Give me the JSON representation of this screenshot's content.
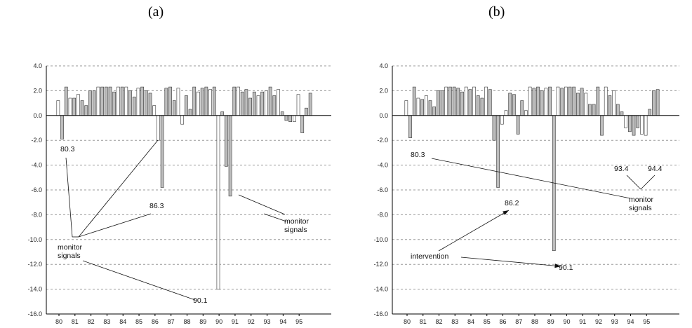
{
  "chart_data": [
    {
      "id": "a",
      "panel_label": "(a)",
      "type": "bar",
      "ylim": [
        -16,
        4
      ],
      "yticks": [
        "4.0",
        "2.0",
        "0.0",
        "-2.0",
        "-4.0",
        "-6.0",
        "-8.0",
        "-10.0",
        "-12.0",
        "-14.0",
        "-16.0"
      ],
      "xticks": [
        "80",
        "81",
        "82",
        "83",
        "84",
        "85",
        "86",
        "87",
        "88",
        "89",
        "90",
        "91",
        "92",
        "93",
        "94",
        "95"
      ],
      "grid": true,
      "bars": [
        1.2,
        -1.9,
        2.3,
        1.4,
        1.4,
        1.7,
        1.2,
        0.8,
        2.0,
        2.0,
        2.3,
        2.3,
        2.3,
        2.3,
        1.9,
        2.3,
        2.3,
        2.3,
        2.0,
        1.5,
        2.2,
        2.3,
        2.0,
        1.8,
        0.8,
        -2.0,
        -5.8,
        2.2,
        2.3,
        1.2,
        2.2,
        -0.7,
        1.6,
        0.5,
        2.3,
        1.9,
        2.2,
        2.3,
        2.1,
        2.3,
        -14.0,
        0.3,
        -4.1,
        -6.5,
        2.3,
        2.3,
        1.9,
        2.1,
        1.4,
        1.9,
        1.6,
        1.9,
        2.0,
        2.3,
        1.6,
        2.1,
        0.3,
        -0.4,
        -0.5,
        -0.5,
        1.7,
        -1.4,
        0.6,
        1.8
      ],
      "annotations": [
        "80.3",
        "86.3",
        "monitor\nsignals",
        "90.1",
        "monitor\nsignals"
      ]
    },
    {
      "id": "b",
      "panel_label": "(b)",
      "type": "bar",
      "ylim": [
        -16,
        4
      ],
      "yticks": [
        "4.0",
        "2.0",
        "0.0",
        "-2.0",
        "-4.0",
        "-6.0",
        "-8.0",
        "-10.0",
        "-12.0",
        "-14.0",
        "-16.0"
      ],
      "xticks": [
        "80",
        "81",
        "82",
        "83",
        "84",
        "85",
        "86",
        "87",
        "88",
        "89",
        "90",
        "91",
        "92",
        "93",
        "94",
        "95"
      ],
      "grid": true,
      "bars": [
        1.2,
        -1.8,
        2.3,
        1.4,
        1.3,
        1.6,
        1.2,
        0.7,
        2.0,
        2.0,
        2.3,
        2.3,
        2.3,
        2.2,
        1.9,
        2.3,
        2.1,
        2.3,
        1.6,
        1.4,
        2.3,
        2.1,
        -2.0,
        -5.8,
        -0.7,
        0.4,
        1.8,
        1.7,
        -1.5,
        1.2,
        0.4,
        2.3,
        2.2,
        2.3,
        2.0,
        2.2,
        2.3,
        -10.9,
        2.3,
        2.2,
        2.3,
        2.3,
        2.3,
        1.8,
        2.2,
        1.8,
        0.9,
        0.9,
        2.3,
        -1.6,
        2.3,
        1.6,
        2.0,
        0.9,
        0.3,
        -1.0,
        -1.3,
        -1.6,
        -1.0,
        -1.5,
        -1.6,
        0.5,
        2.0,
        2.1
      ],
      "annotations": [
        "80.3",
        "93.4",
        "94.4",
        "monitor\nsignals",
        "86.2",
        "intervention",
        "90.1"
      ]
    }
  ]
}
